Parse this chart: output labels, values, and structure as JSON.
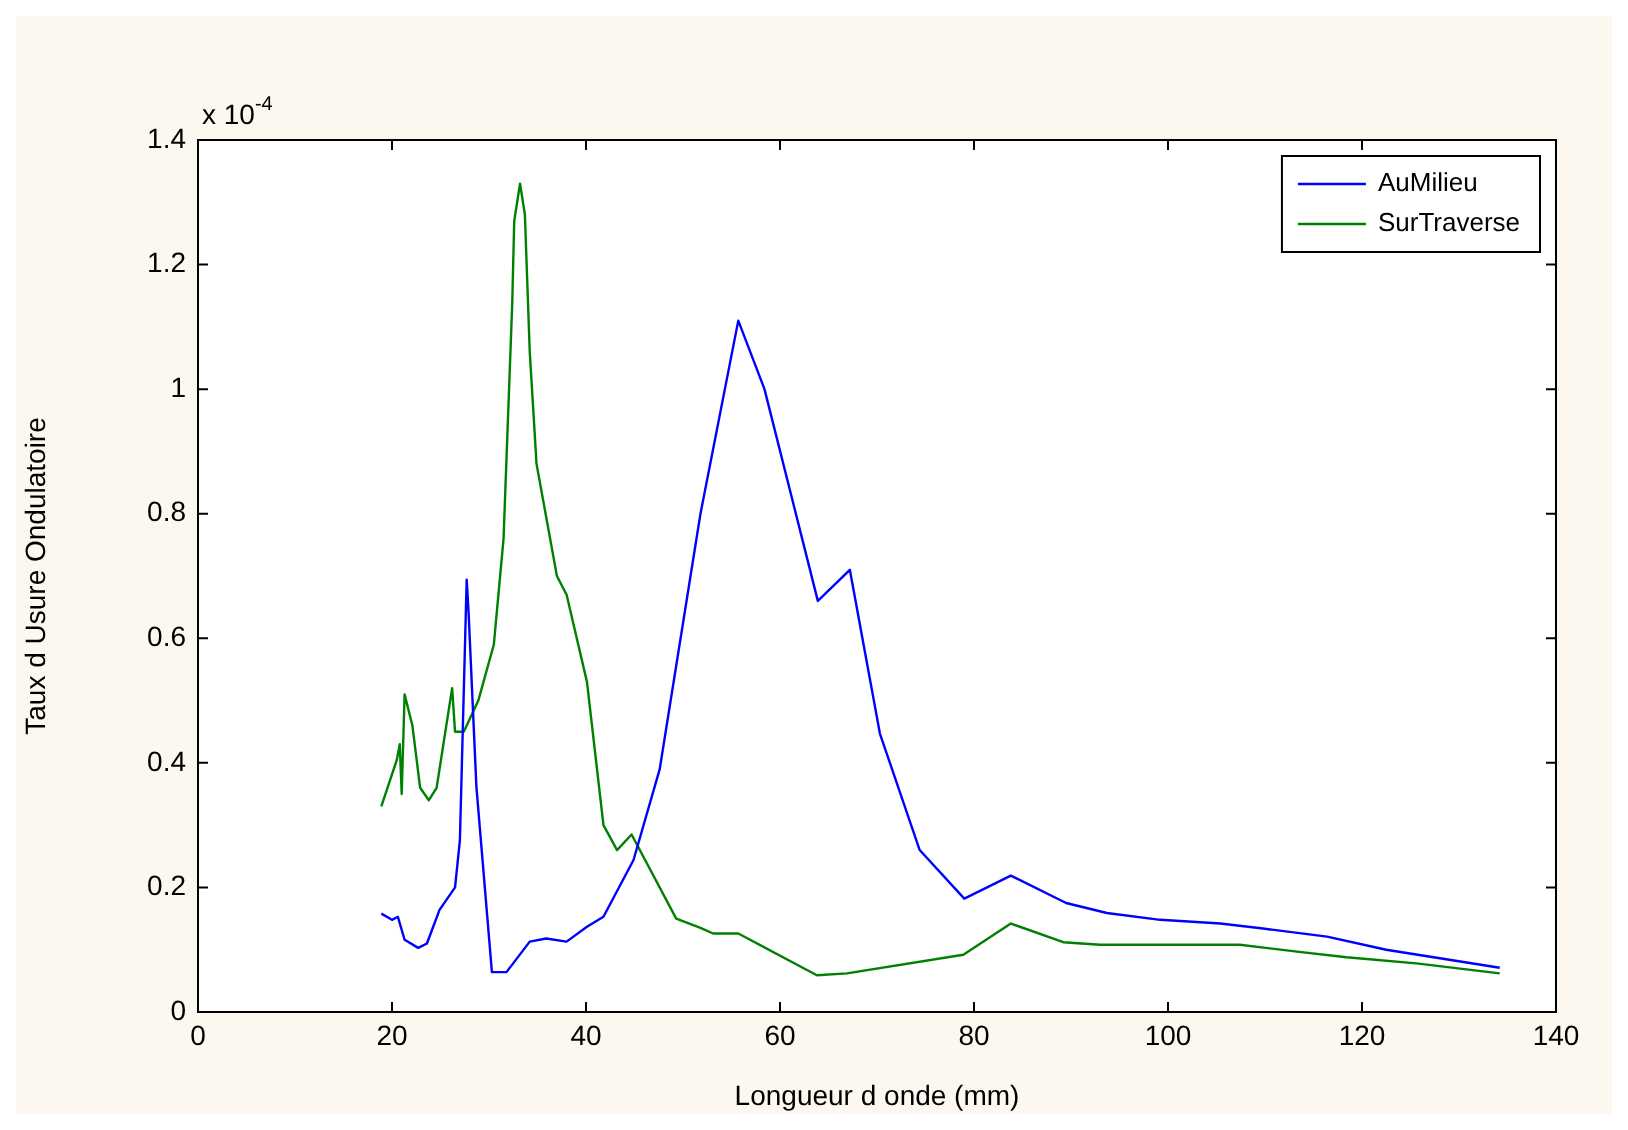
{
  "chart_data": {
    "type": "line",
    "xlabel": "Longueur d onde (mm)",
    "ylabel": "Taux d Usure Ondulatoire",
    "annotations": [
      "x 10$^{-4}$"
    ],
    "xlim": [
      0,
      140
    ],
    "xticks": [
      0,
      20,
      40,
      60,
      80,
      100,
      120,
      140
    ],
    "ylim": [
      0,
      1.4
    ],
    "yticks": [
      0,
      0.2,
      0.4,
      0.6,
      0.8,
      1,
      1.2,
      1.4
    ],
    "grid": false,
    "legend": "top right",
    "marker": "none",
    "line_style": "solid",
    "series": [
      {
        "name": "AuMilieu",
        "color": "#0000ff",
        "x": [
          18.9,
          20,
          20.6,
          21.3,
          22.7,
          23.6,
          24.9,
          26.5,
          27,
          27.7,
          27.9,
          28.7,
          30.3,
          31.8,
          34.2,
          35.9,
          38,
          40.1,
          41.8,
          44.9,
          47.6,
          51.8,
          55.7,
          58.4,
          63.9,
          67.2,
          70.3,
          74.4,
          79,
          83.8,
          89.5,
          93.7,
          99.2,
          105.4,
          109.8,
          116.4,
          122.5,
          134.2
        ],
        "values": [
          0.158,
          0.148,
          0.153,
          0.116,
          0.103,
          0.11,
          0.164,
          0.2,
          0.276,
          0.694,
          0.64,
          0.362,
          0.064,
          0.064,
          0.113,
          0.118,
          0.113,
          0.137,
          0.153,
          0.244,
          0.39,
          0.8,
          1.11,
          1.0,
          0.66,
          0.71,
          0.447,
          0.26,
          0.182,
          0.219,
          0.175,
          0.159,
          0.148,
          0.142,
          0.134,
          0.121,
          0.1,
          0.071
        ]
      },
      {
        "name": "SurTraverse",
        "color": "#008000",
        "x": [
          18.9,
          20.5,
          20.8,
          21,
          21.3,
          22.1,
          22.9,
          23.8,
          24.6,
          26.2,
          26.5,
          27.4,
          28.9,
          30.5,
          31.5,
          32.4,
          32.6,
          33.2,
          33.7,
          34.2,
          34.9,
          37,
          38,
          40.1,
          41.8,
          43.2,
          44.7,
          49.3,
          51.8,
          53.1,
          55.7,
          63.8,
          66.9,
          78.9,
          83.8,
          89.2,
          93,
          99.2,
          107.4,
          113.3,
          118.4,
          125.6,
          134.2
        ],
        "values": [
          0.33,
          0.405,
          0.43,
          0.35,
          0.51,
          0.46,
          0.36,
          0.34,
          0.36,
          0.52,
          0.45,
          0.45,
          0.5,
          0.59,
          0.76,
          1.14,
          1.27,
          1.33,
          1.28,
          1.06,
          0.88,
          0.7,
          0.67,
          0.53,
          0.3,
          0.26,
          0.285,
          0.15,
          0.135,
          0.126,
          0.126,
          0.059,
          0.062,
          0.092,
          0.142,
          0.112,
          0.108,
          0.108,
          0.108,
          0.097,
          0.088,
          0.078,
          0.062
        ]
      }
    ]
  }
}
